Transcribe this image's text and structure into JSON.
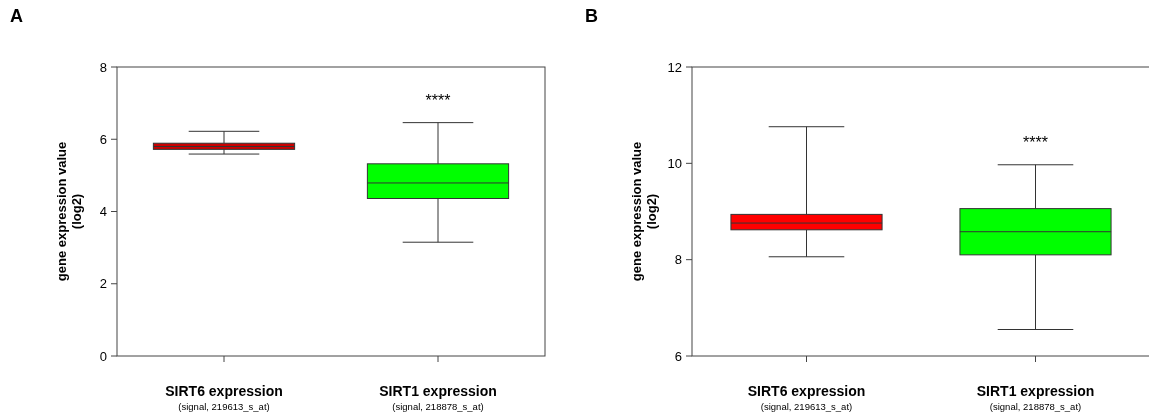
{
  "chart_data": [
    {
      "type": "box",
      "title": "A",
      "ylabel": "gene expression value\n(log2)",
      "categories": [
        "SIRT6 expression\n(signal, 219613_s_at)",
        "SIRT1 expression\n(signal, 218878_s_at)"
      ],
      "boxes": [
        {
          "low": 5.59,
          "q1": 5.72,
          "median": 5.8,
          "q3": 5.89,
          "high": 6.22
        },
        {
          "low": 3.15,
          "q1": 4.36,
          "median": 4.79,
          "q3": 5.32,
          "high": 6.46
        }
      ],
      "colors": [
        "#cc0000",
        "#00ff00"
      ],
      "ylim": [
        0,
        8
      ],
      "yticks": [
        0,
        2,
        4,
        6,
        8
      ],
      "annotations": [
        "****"
      ]
    },
    {
      "type": "box",
      "title": "B",
      "ylabel": "gene expression value\n(log2)",
      "categories": [
        "SIRT6 expression\n(signal, 219613_s_at)",
        "SIRT1 expression\n(signal, 218878_s_at)"
      ],
      "boxes": [
        {
          "low": 8.06,
          "q1": 8.62,
          "median": 8.76,
          "q3": 8.94,
          "high": 10.76
        },
        {
          "low": 6.55,
          "q1": 8.1,
          "median": 8.58,
          "q3": 9.06,
          "high": 9.97
        }
      ],
      "colors": [
        "#ff0000",
        "#00ff00"
      ],
      "ylim": [
        6,
        12
      ],
      "yticks": [
        6,
        8,
        10,
        12
      ],
      "annotations": [
        "****"
      ]
    }
  ]
}
